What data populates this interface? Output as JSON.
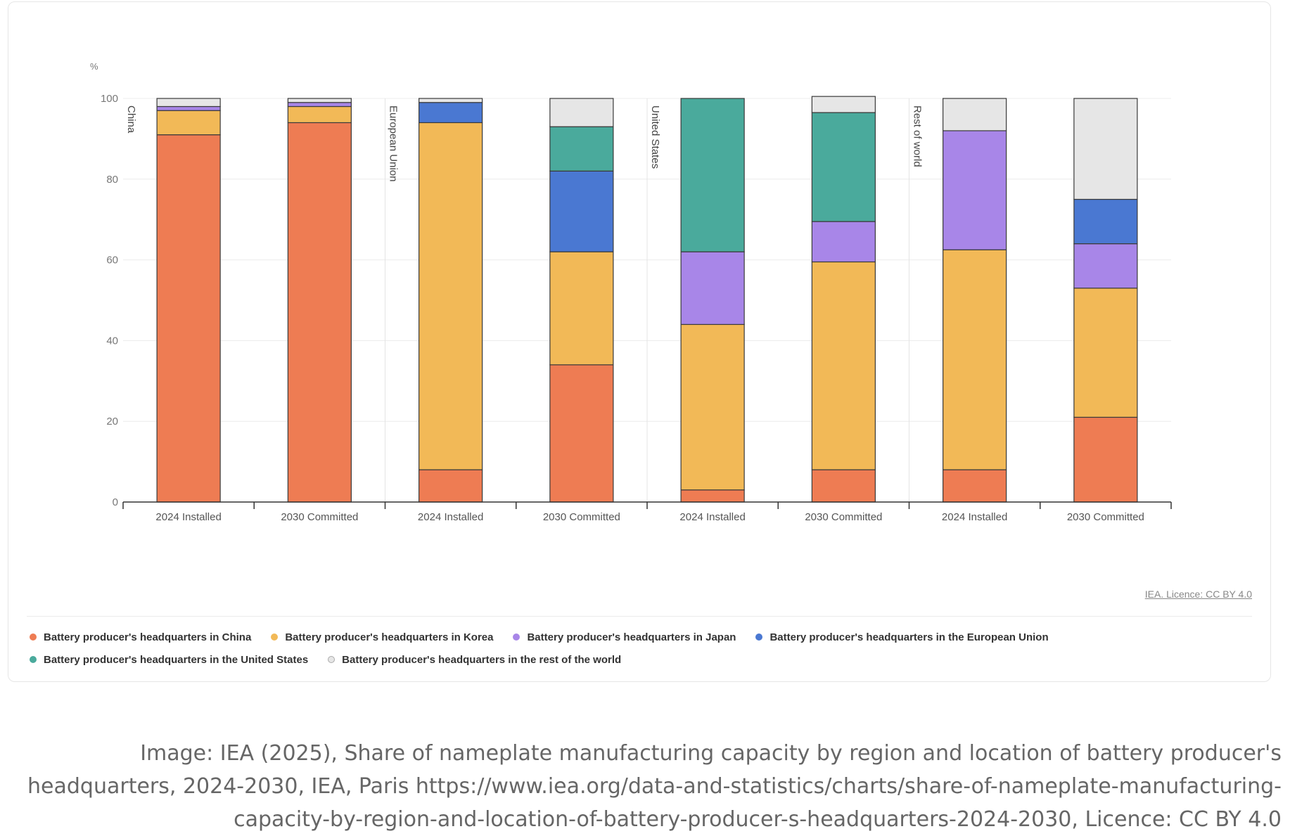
{
  "chart_data": {
    "type": "bar",
    "stacked": true,
    "unit_label": "%",
    "ylim": [
      0,
      100
    ],
    "yticks": [
      0,
      20,
      40,
      60,
      80,
      100
    ],
    "grid": true,
    "groups": [
      "China",
      "European Union",
      "United States",
      "Rest of world"
    ],
    "categories": [
      "2024 Installed",
      "2030 Committed",
      "2024 Installed",
      "2030 Committed",
      "2024 Installed",
      "2030 Committed",
      "2024 Installed",
      "2030 Committed"
    ],
    "series": [
      {
        "name": "Battery producer's headquarters in China",
        "color": "#ee7c53",
        "values": [
          91,
          94,
          8,
          34,
          3,
          8,
          8,
          21
        ]
      },
      {
        "name": "Battery producer's headquarters in Korea",
        "color": "#f2b957",
        "values": [
          6,
          4,
          86,
          28,
          41,
          51.5,
          54.5,
          32
        ]
      },
      {
        "name": "Battery producer's headquarters in Japan",
        "color": "#a886e8",
        "values": [
          1,
          1,
          0,
          0,
          18,
          10,
          29.5,
          11
        ]
      },
      {
        "name": "Battery producer's headquarters in the European Union",
        "color": "#4a78d2",
        "values": [
          0,
          0,
          5,
          20,
          0,
          0,
          0,
          11
        ]
      },
      {
        "name": "Battery producer's headquarters in the United States",
        "color": "#4aaa9c",
        "values": [
          0,
          0,
          0,
          11,
          38,
          27,
          0,
          0
        ]
      },
      {
        "name": "Battery producer's headquarters in the rest of the world",
        "color": "#e6e6e6",
        "values": [
          2,
          1,
          1,
          7,
          0,
          4,
          8,
          25
        ]
      }
    ]
  },
  "license_text": "IEA. Licence: CC BY 4.0",
  "caption": "Image: IEA (2025), Share of nameplate manufacturing capacity by region and location of battery producer's headquarters, 2024-2030, IEA, Paris https://www.iea.org/data-and-statistics/charts/share-of-nameplate-manufacturing-capacity-by-region-and-location-of-battery-producer-s-headquarters-2024-2030, Licence: CC BY 4.0"
}
